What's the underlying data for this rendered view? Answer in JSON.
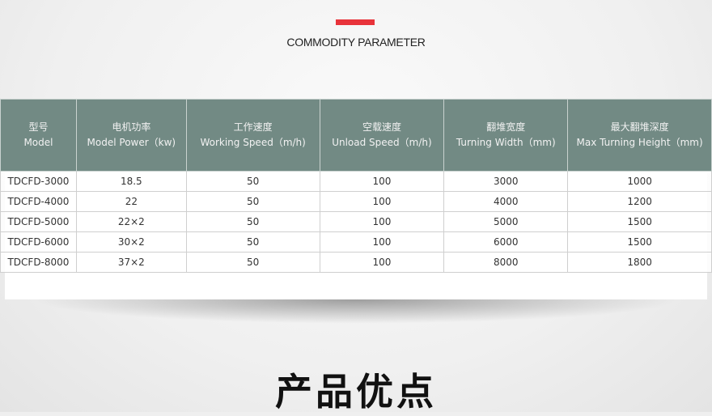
{
  "section": {
    "subtitle": "COMMODITY PARAMETER",
    "accent": "#e8333a",
    "next_title": "产品优点"
  },
  "table": {
    "headers": [
      {
        "cn": "型号",
        "en": "Model"
      },
      {
        "cn": "电机功率",
        "en": "Model Power（kw)"
      },
      {
        "cn": "工作速度",
        "en": "Working Speed（m/h)"
      },
      {
        "cn": "空载速度",
        "en": "Unload Speed（m/h)"
      },
      {
        "cn": "翻堆宽度",
        "en": "Turning Width（mm)"
      },
      {
        "cn": "最大翻堆深度",
        "en": "Max Turning Height（mm)"
      }
    ],
    "rows": [
      [
        "TDCFD-3000",
        "18.5",
        "50",
        "100",
        "3000",
        "1000"
      ],
      [
        "TDCFD-4000",
        "22",
        "50",
        "100",
        "4000",
        "1200"
      ],
      [
        "TDCFD-5000",
        "22×2",
        "50",
        "100",
        "5000",
        "1500"
      ],
      [
        "TDCFD-6000",
        "30×2",
        "50",
        "100",
        "6000",
        "1500"
      ],
      [
        "TDCFD-8000",
        "37×2",
        "50",
        "100",
        "8000",
        "1800"
      ]
    ],
    "header_color": "#728a84"
  }
}
